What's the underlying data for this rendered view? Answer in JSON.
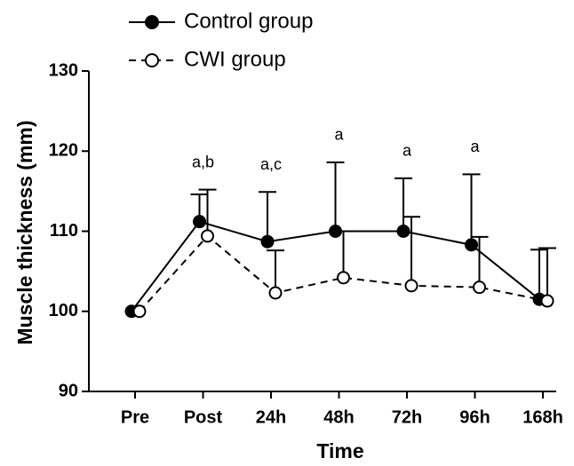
{
  "chart_data": {
    "type": "line",
    "x_label": "Time",
    "y_label": "Muscle thickness (mm)",
    "categories": [
      "Pre",
      "Post",
      "24h",
      "48h",
      "72h",
      "96h",
      "168h"
    ],
    "annotations": [
      null,
      "a,b",
      "a,c",
      "a",
      "a",
      "a",
      null
    ],
    "series": [
      {
        "name": "Control group",
        "color": "#000000",
        "linestyle": "solid",
        "marker": "filled",
        "values": [
          100,
          111.2,
          108.7,
          110,
          110,
          108.3,
          101.5
        ],
        "errors": [
          0,
          3.4,
          6.2,
          8.6,
          6.6,
          8.8,
          6.2
        ]
      },
      {
        "name": "CWI group",
        "color": "#000000",
        "linestyle": "dashed",
        "marker": "open",
        "values": [
          100,
          109.4,
          102.3,
          104.2,
          103.2,
          103,
          101.3
        ],
        "errors": [
          0,
          5.8,
          5.3,
          5.8,
          8.6,
          6.3,
          6.6
        ]
      }
    ],
    "ylim": [
      90,
      130
    ],
    "yticks": [
      90,
      100,
      110,
      120,
      130
    ],
    "grid": false
  }
}
